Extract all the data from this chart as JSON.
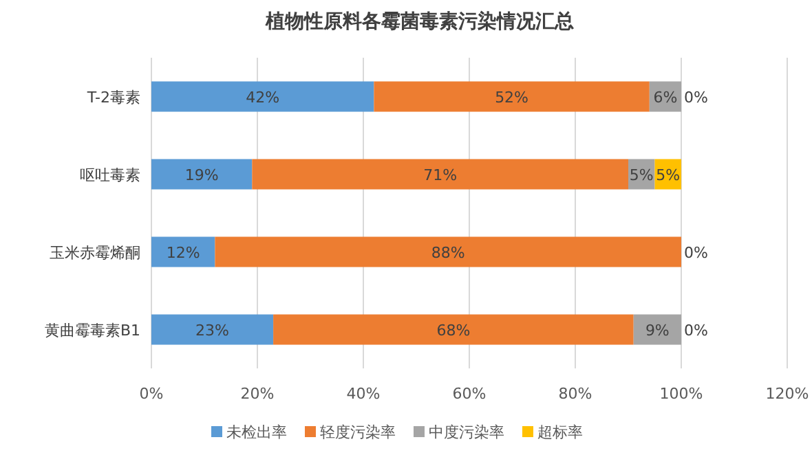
{
  "chart_data": {
    "type": "bar",
    "orientation": "horizontal",
    "stacked": true,
    "title": "植物性原料各霉菌毒素污染情况汇总",
    "categories": [
      "T-2毒素",
      "呕吐毒素",
      "玉米赤霉烯酮",
      "黄曲霉毒素B1"
    ],
    "series": [
      {
        "name": "未检出率",
        "color": "#5b9bd5",
        "values": [
          42,
          19,
          12,
          23
        ],
        "value_labels": [
          "42%",
          "19%",
          "12%",
          "23%"
        ]
      },
      {
        "name": "轻度污染率",
        "color": "#ed7d31",
        "values": [
          52,
          71,
          88,
          68
        ],
        "value_labels": [
          "52%",
          "71%",
          "88%",
          "68%"
        ]
      },
      {
        "name": "中度污染率",
        "color": "#a5a5a5",
        "values": [
          6,
          5,
          0,
          9
        ],
        "value_labels": [
          "6%",
          "5%",
          null,
          "9%"
        ]
      },
      {
        "name": "超标率",
        "color": "#ffc000",
        "values": [
          0,
          5,
          0,
          0
        ],
        "value_labels": [
          "0%",
          "5%",
          "0%",
          "0%"
        ]
      }
    ],
    "xlim": [
      0,
      120
    ],
    "xticks": [
      {
        "value": 0,
        "label": "0%"
      },
      {
        "value": 20,
        "label": "20%"
      },
      {
        "value": 40,
        "label": "40%"
      },
      {
        "value": 60,
        "label": "60%"
      },
      {
        "value": 80,
        "label": "80%"
      },
      {
        "value": 100,
        "label": "100%"
      },
      {
        "value": 120,
        "label": "120%"
      }
    ],
    "grid": "x",
    "legend": "bottom"
  }
}
